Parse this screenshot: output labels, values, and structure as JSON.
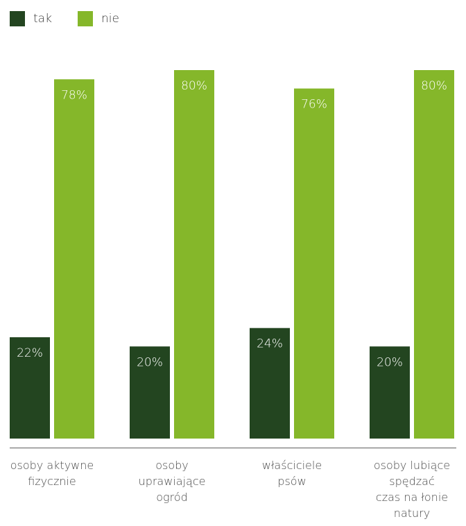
{
  "legend": {
    "items": [
      {
        "label": "tak",
        "color": "#234520"
      },
      {
        "label": "nie",
        "color": "#85b72a"
      }
    ]
  },
  "chart_data": {
    "type": "bar",
    "categories": [
      [
        "osoby aktywne",
        "fizycznie"
      ],
      [
        "osoby",
        "uprawiające",
        "ogród"
      ],
      [
        "właściciele",
        "psów"
      ],
      [
        "osoby lubiące",
        "spędzać",
        "czas na łonie",
        "natury"
      ]
    ],
    "series": [
      {
        "name": "tak",
        "color": "#234520",
        "values": [
          22,
          20,
          24,
          20
        ],
        "labels": [
          "22%",
          "20%",
          "24%",
          "20%"
        ]
      },
      {
        "name": "nie",
        "color": "#85b72a",
        "values": [
          78,
          80,
          76,
          80
        ],
        "labels": [
          "78%",
          "80%",
          "76%",
          "80%"
        ]
      }
    ],
    "ylim": [
      0,
      80
    ],
    "grid": false,
    "legend_position": "top-left",
    "axis_color": "#8a8a8a"
  }
}
